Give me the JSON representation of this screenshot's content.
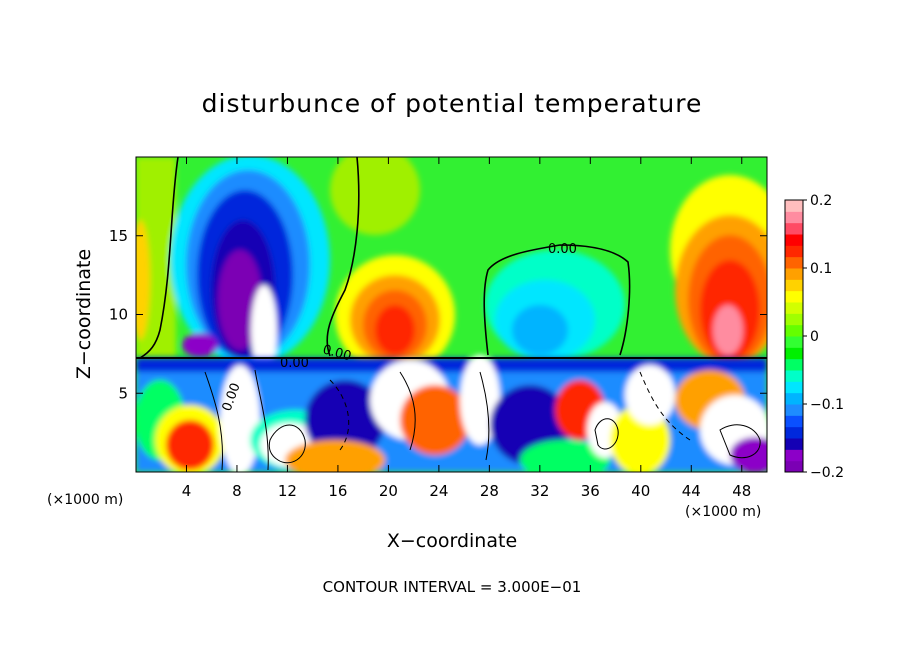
{
  "chart_data": {
    "type": "heatmap",
    "title": "disturbunce of potential temperature",
    "xlabel": "X−coordinate",
    "ylabel": "Z−coordinate",
    "x_unit_left": "(×1000 m)",
    "x_unit_right": "(×1000 m)",
    "footer": "CONTOUR INTERVAL = 3.000E−01",
    "xlim": [
      0,
      50
    ],
    "ylim": [
      0,
      20
    ],
    "x_ticks": [
      4,
      8,
      12,
      16,
      20,
      24,
      28,
      32,
      36,
      40,
      44,
      48
    ],
    "x_tick_labels": [
      "4",
      "8",
      "12",
      "16",
      "20",
      "24",
      "28",
      "32",
      "36",
      "40",
      "44",
      "48"
    ],
    "y_ticks": [
      5,
      10,
      15
    ],
    "y_tick_labels": [
      "5",
      "10",
      "15"
    ],
    "colorbar": {
      "min": -0.2,
      "max": 0.2,
      "ticks": [
        0.2,
        0.1,
        0,
        -0.1,
        -0.2
      ],
      "tick_labels": [
        "0.2",
        "0.1",
        "0",
        "−0.1",
        "−0.2"
      ],
      "colors": [
        "#7b00b4",
        "#8c00c8",
        "#1400b4",
        "#0028dc",
        "#0a50ff",
        "#1e8cff",
        "#00b4ff",
        "#00e6ff",
        "#00ffc8",
        "#00ff64",
        "#00f000",
        "#32ff32",
        "#64ff00",
        "#a0ff00",
        "#d2ff00",
        "#ffff00",
        "#ffd200",
        "#ffa000",
        "#ff6400",
        "#ff2800",
        "#ff0000",
        "#ff4b64",
        "#ff8ca0",
        "#ffbebe"
      ]
    },
    "contour_labels": [
      "0.00",
      "0.00",
      "0.00",
      "0.00"
    ],
    "features": [
      {
        "x": 9.5,
        "z": 13.5,
        "value": -0.2
      },
      {
        "x": 20.5,
        "z": 10.5,
        "value": 0.14
      },
      {
        "x": 30.5,
        "z": 10.5,
        "value": -0.08
      },
      {
        "x": 46,
        "z": 11.5,
        "value": 0.18
      }
    ]
  }
}
